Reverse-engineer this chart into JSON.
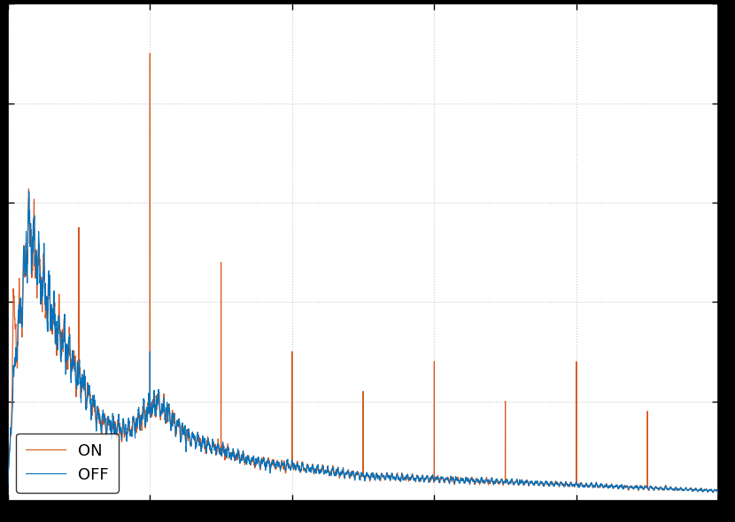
{
  "color_off": "#0072BD",
  "color_on": "#D95319",
  "legend_labels": [
    "OFF",
    "ON"
  ],
  "figsize": [
    8.3,
    5.9
  ],
  "dpi": 100,
  "xlim": [
    0,
    500
  ],
  "outer_bg": "#000000",
  "inner_bg": "#ffffff",
  "grid_color": "#c8c8c8",
  "linewidth": 0.8,
  "tick_labelsize": 11,
  "ylim": [
    0,
    1.0
  ],
  "seed_off": 101,
  "seed_on": 202
}
